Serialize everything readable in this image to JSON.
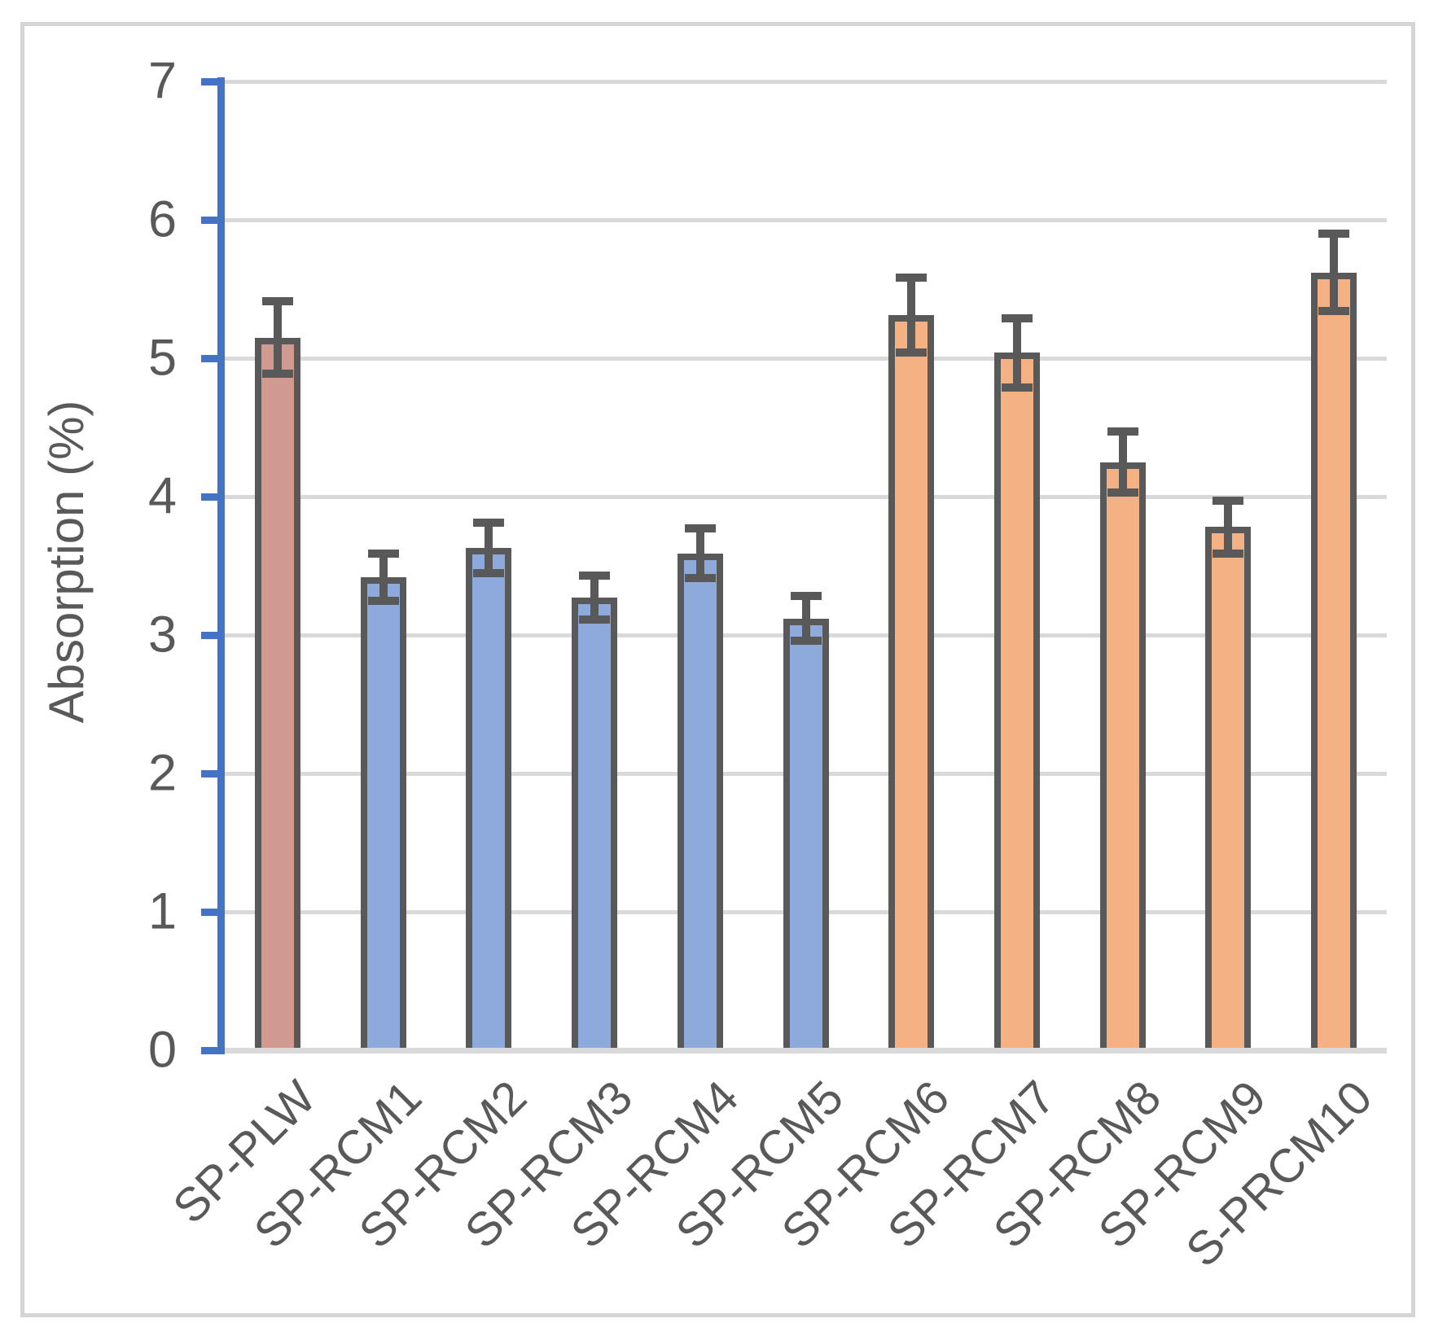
{
  "chart_data": {
    "type": "bar",
    "title": "",
    "xlabel": "",
    "ylabel": "Absorption (%)",
    "ylim": [
      0,
      7
    ],
    "yticks": [
      0,
      1,
      2,
      3,
      4,
      5,
      6,
      7
    ],
    "grid": true,
    "legend_position": "none",
    "categories": [
      "SP-PLW",
      "SP-RCM1",
      "SP-RCM2",
      "SP-RCM3",
      "SP-RCM4",
      "SP-RCM5",
      "SP-RCM6",
      "SP-RCM7",
      "SP-RCM8",
      "SP-RCM9",
      "S-PRCM10"
    ],
    "series": [
      {
        "name": "Absorption (%)",
        "values": [
          5.15,
          3.42,
          3.63,
          3.27,
          3.59,
          3.12,
          5.31,
          5.04,
          4.25,
          3.78,
          5.62
        ],
        "errors": [
          0.26,
          0.17,
          0.18,
          0.16,
          0.18,
          0.16,
          0.27,
          0.25,
          0.22,
          0.19,
          0.28
        ]
      }
    ],
    "bar_groups": [
      "reference",
      "blue",
      "blue",
      "blue",
      "blue",
      "blue",
      "orange",
      "orange",
      "orange",
      "orange",
      "orange"
    ],
    "colors": {
      "reference_fill": "#D09A90",
      "blue_fill": "#8EA9DB",
      "orange_fill": "#F4B183",
      "bar_stroke": "#595959",
      "error_bar": "#595959",
      "axis_line": "#4472C4",
      "gridline": "#D9D9D9",
      "text": "#595959",
      "frame_border": "#D5D5D5"
    }
  }
}
